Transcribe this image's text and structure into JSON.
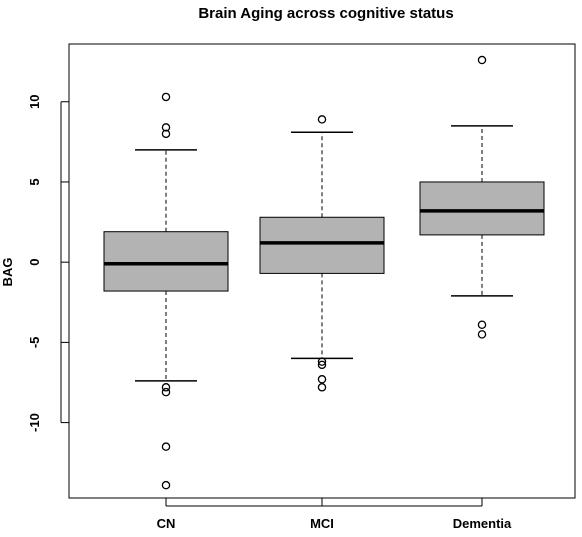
{
  "chart_data": {
    "type": "box",
    "title": "Brain Aging across cognitive status",
    "xlabel": "",
    "ylabel": "BAG",
    "ylim": [
      -14.7,
      13.6
    ],
    "yticks": [
      -10,
      -5,
      0,
      5,
      10
    ],
    "yticks_rotated": true,
    "grid": false,
    "legend": "none",
    "box_fill": "#b3b3b3",
    "categories": [
      "CN",
      "MCI",
      "Dementia"
    ],
    "boxes": [
      {
        "category": "CN",
        "whisker_low": -7.4,
        "q1": -1.8,
        "median": -0.1,
        "q3": 1.9,
        "whisker_high": 7.0,
        "outliers": [
          10.3,
          8.4,
          8.0,
          -7.8,
          -8.1,
          -11.5,
          -13.9
        ]
      },
      {
        "category": "MCI",
        "whisker_low": -6.0,
        "q1": -0.7,
        "median": 1.2,
        "q3": 2.8,
        "whisker_high": 8.1,
        "outliers": [
          8.9,
          -6.2,
          -6.4,
          -7.3,
          -7.8
        ]
      },
      {
        "category": "Dementia",
        "whisker_low": -2.1,
        "q1": 1.7,
        "median": 3.2,
        "q3": 5.0,
        "whisker_high": 8.5,
        "outliers": [
          12.6,
          -3.9,
          -4.5
        ]
      }
    ]
  }
}
